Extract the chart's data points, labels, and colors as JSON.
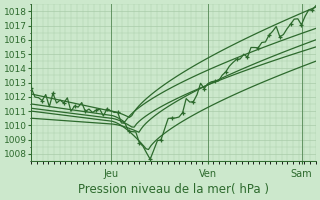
{
  "background_color": "#cce8cc",
  "plot_bg_color": "#cce8cc",
  "grid_color": "#aaccaa",
  "line_color": "#2d6a2d",
  "marker_color": "#2d6a2d",
  "xlabel": "Pression niveau de la mer( hPa )",
  "ylim": [
    1007.5,
    1018.5
  ],
  "yticks": [
    1008,
    1009,
    1010,
    1011,
    1012,
    1013,
    1014,
    1015,
    1016,
    1017,
    1018
  ],
  "xlabel_fontsize": 8.5,
  "tick_fontsize": 6.5,
  "xtick_day_labels": [
    "Jeu",
    "Ven",
    "Sam"
  ],
  "xtick_day_positions": [
    0.28,
    0.62,
    0.95
  ]
}
